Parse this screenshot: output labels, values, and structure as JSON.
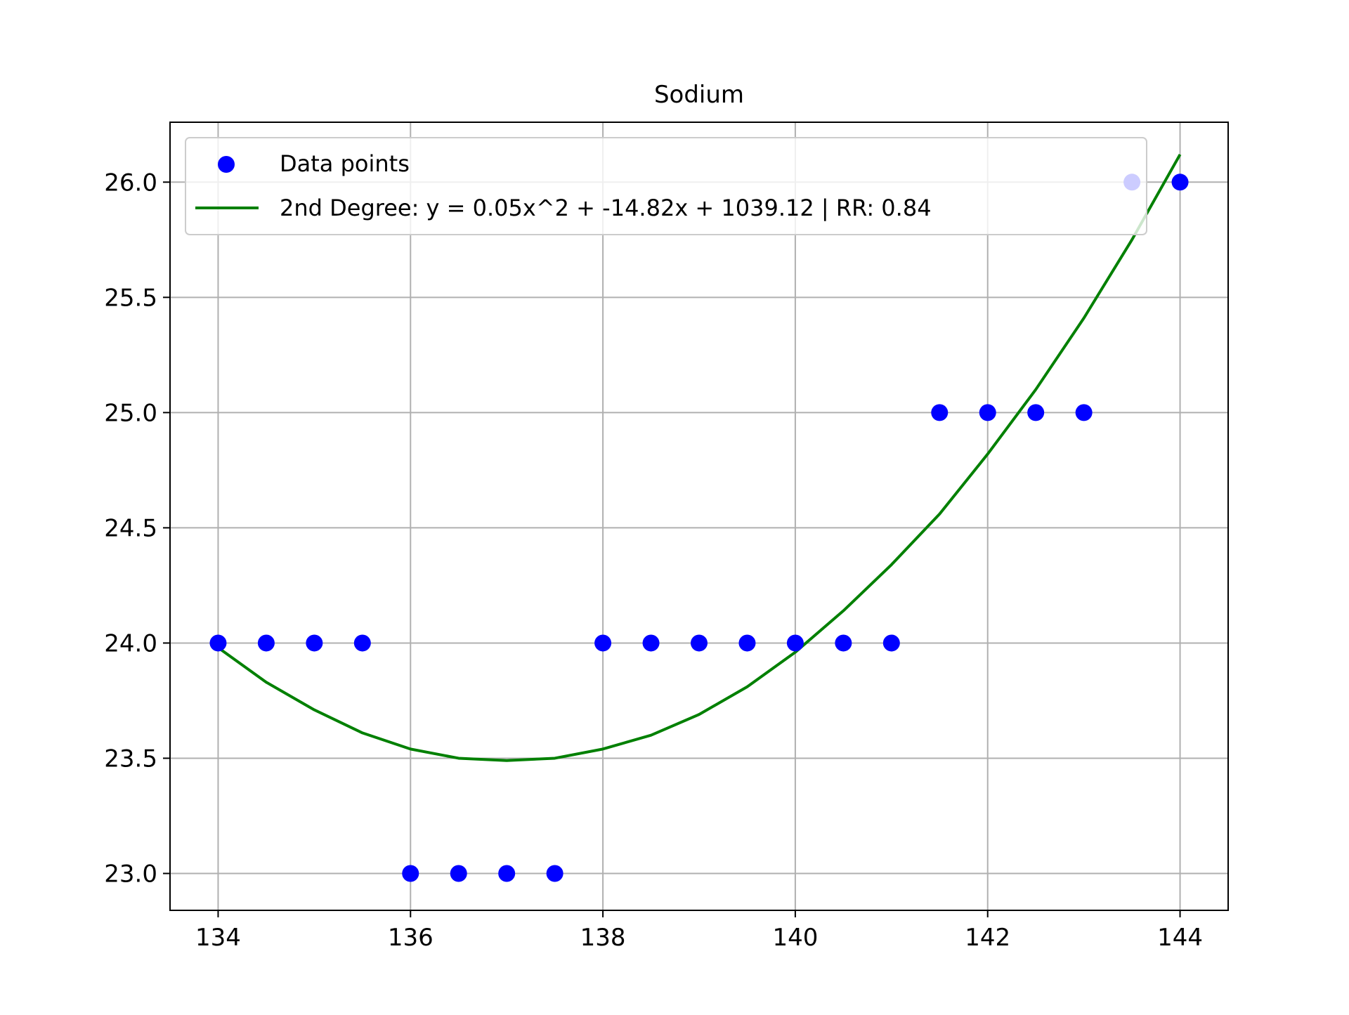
{
  "chart_data": {
    "type": "scatter",
    "title": "Sodium",
    "xlabel": "",
    "ylabel": "",
    "xlim": [
      133.5,
      144.5
    ],
    "ylim": [
      22.84,
      26.26
    ],
    "xticks": [
      134,
      136,
      138,
      140,
      142,
      144
    ],
    "xtick_labels": [
      "134",
      "136",
      "138",
      "140",
      "142",
      "144"
    ],
    "yticks": [
      23.0,
      23.5,
      24.0,
      24.5,
      25.0,
      25.5,
      26.0
    ],
    "ytick_labels": [
      "23.0",
      "23.5",
      "24.0",
      "24.5",
      "25.0",
      "25.5",
      "26.0"
    ],
    "grid": true,
    "legend_position": "top-left",
    "scatter_series": {
      "name": "Data points",
      "color": "#0000ff",
      "x": [
        134,
        134.5,
        135,
        135.5,
        136,
        136.5,
        137,
        137.5,
        138,
        138.5,
        139,
        139.5,
        140,
        140.5,
        141,
        141.5,
        142,
        142.5,
        143,
        143.5,
        144
      ],
      "y": [
        24,
        24,
        24,
        24,
        23,
        23,
        23,
        23,
        24,
        24,
        24,
        24,
        24,
        24,
        24,
        25,
        25,
        25,
        25,
        26,
        26
      ]
    },
    "fit_series": {
      "name": "2nd Degree: y = 0.05x^2 + -14.82x + 1039.12 | RR: 0.84",
      "color": "#008000",
      "x": [
        134,
        134.5,
        135,
        135.5,
        136,
        136.5,
        137,
        137.5,
        138,
        138.5,
        139,
        139.5,
        140,
        140.5,
        141,
        141.5,
        142,
        142.5,
        143,
        143.5,
        144
      ],
      "y": [
        23.98,
        23.83,
        23.71,
        23.61,
        23.54,
        23.5,
        23.49,
        23.5,
        23.54,
        23.6,
        23.69,
        23.81,
        23.96,
        24.14,
        24.34,
        24.56,
        24.82,
        25.1,
        25.41,
        25.75,
        26.12
      ]
    }
  }
}
